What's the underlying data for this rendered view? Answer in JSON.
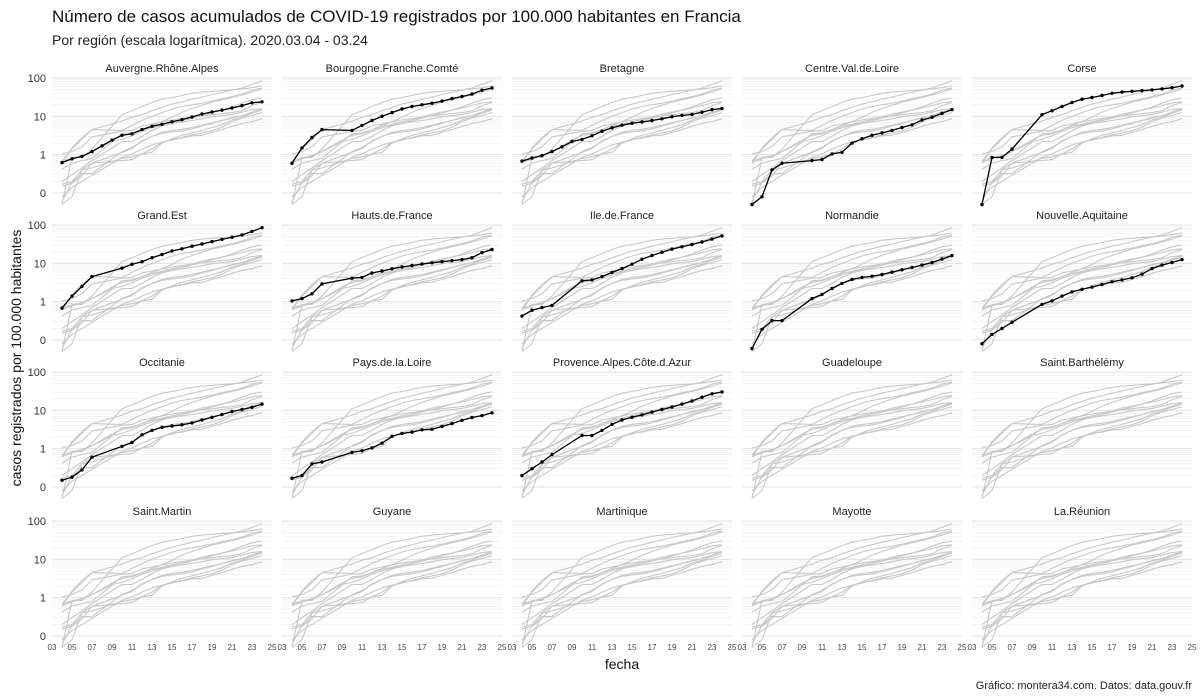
{
  "chart_data": {
    "type": "line",
    "title": "Número de casos acumulados de COVID-19 registrados por 100.000 habitantes en Francia",
    "subtitle": "Por región (escala logarítmica). 2020.03.04 - 03.24",
    "xlabel": "fecha",
    "ylabel": "casos registrados por 100.000 habitantes",
    "caption": "Gráfico: montera34.com. Datos: data.gouv.fr",
    "x_scale": "date",
    "y_scale": "log",
    "xlim": [
      "2020-03-03",
      "2020-03-25"
    ],
    "ylim": [
      0.1,
      100
    ],
    "y_ticks": [
      {
        "value": 0.1,
        "label": "0"
      },
      {
        "value": 1,
        "label": "1"
      },
      {
        "value": 10,
        "label": "10"
      },
      {
        "value": 100,
        "label": "100"
      }
    ],
    "x_ticks": [
      {
        "value": "2020-03-03",
        "label": "03"
      },
      {
        "value": "2020-03-05",
        "label": "05"
      },
      {
        "value": "2020-03-07",
        "label": "07"
      },
      {
        "value": "2020-03-09",
        "label": "09"
      },
      {
        "value": "2020-03-11",
        "label": "11"
      },
      {
        "value": "2020-03-13",
        "label": "13"
      },
      {
        "value": "2020-03-15",
        "label": "15"
      },
      {
        "value": "2020-03-17",
        "label": "17"
      },
      {
        "value": "2020-03-19",
        "label": "19"
      },
      {
        "value": "2020-03-21",
        "label": "21"
      },
      {
        "value": "2020-03-23",
        "label": "23"
      },
      {
        "value": "2020-03-25",
        "label": "25"
      }
    ],
    "grid": true,
    "legend": "none",
    "highlight_color": "#000000",
    "background_series_color": "#c8c8c8",
    "facets": [
      {
        "name": "Auvergne.Rhône.Alpes",
        "x": [
          "2020-03-04",
          "2020-03-05",
          "2020-03-06",
          "2020-03-07",
          "2020-03-08",
          "2020-03-09",
          "2020-03-10",
          "2020-03-11",
          "2020-03-12",
          "2020-03-13",
          "2020-03-14",
          "2020-03-15",
          "2020-03-16",
          "2020-03-17",
          "2020-03-18",
          "2020-03-19",
          "2020-03-20",
          "2020-03-21",
          "2020-03-22",
          "2020-03-23",
          "2020-03-24"
        ],
        "y": [
          0.62,
          0.78,
          0.9,
          1.2,
          1.7,
          2.4,
          3.2,
          3.5,
          4.5,
          5.5,
          6.2,
          7.2,
          8.2,
          9.6,
          11.5,
          13,
          14.5,
          16.5,
          19,
          22.5,
          24
        ]
      },
      {
        "name": "Bourgogne.Franche.Comté",
        "x": [
          "2020-03-04",
          "2020-03-05",
          "2020-03-06",
          "2020-03-07",
          "2020-03-10",
          "2020-03-11",
          "2020-03-12",
          "2020-03-13",
          "2020-03-14",
          "2020-03-15",
          "2020-03-16",
          "2020-03-17",
          "2020-03-18",
          "2020-03-19",
          "2020-03-20",
          "2020-03-21",
          "2020-03-22",
          "2020-03-23",
          "2020-03-24"
        ],
        "y": [
          0.6,
          1.5,
          2.8,
          4.5,
          4.3,
          5.8,
          7.8,
          10,
          12.5,
          15.5,
          18,
          20,
          22,
          25,
          29,
          33,
          38,
          48,
          55
        ]
      },
      {
        "name": "Bretagne",
        "x": [
          "2020-03-04",
          "2020-03-05",
          "2020-03-06",
          "2020-03-07",
          "2020-03-08",
          "2020-03-09",
          "2020-03-10",
          "2020-03-11",
          "2020-03-12",
          "2020-03-13",
          "2020-03-14",
          "2020-03-15",
          "2020-03-16",
          "2020-03-17",
          "2020-03-18",
          "2020-03-19",
          "2020-03-20",
          "2020-03-21",
          "2020-03-22",
          "2020-03-23",
          "2020-03-24"
        ],
        "y": [
          0.68,
          0.82,
          0.95,
          1.2,
          1.6,
          2.2,
          2.5,
          3.1,
          4.1,
          5,
          5.9,
          6.6,
          7.1,
          7.8,
          8.6,
          9.8,
          10.5,
          11.2,
          12.8,
          15,
          16
        ]
      },
      {
        "name": "Centre.Val.de.Loire",
        "x": [
          "2020-03-04",
          "2020-03-05",
          "2020-03-06",
          "2020-03-07",
          "2020-03-10",
          "2020-03-11",
          "2020-03-12",
          "2020-03-13",
          "2020-03-14",
          "2020-03-15",
          "2020-03-16",
          "2020-03-17",
          "2020-03-18",
          "2020-03-19",
          "2020-03-20",
          "2020-03-21",
          "2020-03-22",
          "2020-03-23",
          "2020-03-24"
        ],
        "y": [
          0.05,
          0.08,
          0.4,
          0.6,
          0.7,
          0.75,
          1.05,
          1.15,
          2,
          2.6,
          3.2,
          3.7,
          4.3,
          5.1,
          6,
          8,
          9.5,
          12,
          15
        ]
      },
      {
        "name": "Corse",
        "x": [
          "2020-03-04",
          "2020-03-05",
          "2020-03-06",
          "2020-03-07",
          "2020-03-10",
          "2020-03-11",
          "2020-03-12",
          "2020-03-13",
          "2020-03-14",
          "2020-03-15",
          "2020-03-16",
          "2020-03-17",
          "2020-03-18",
          "2020-03-19",
          "2020-03-20",
          "2020-03-21",
          "2020-03-22",
          "2020-03-23",
          "2020-03-24"
        ],
        "y": [
          0.05,
          0.85,
          0.85,
          1.4,
          11,
          14,
          18,
          23,
          28,
          31,
          35,
          40,
          43,
          45,
          47,
          49,
          52,
          56,
          62
        ]
      },
      {
        "name": "Grand.Est",
        "x": [
          "2020-03-04",
          "2020-03-05",
          "2020-03-06",
          "2020-03-07",
          "2020-03-10",
          "2020-03-11",
          "2020-03-12",
          "2020-03-13",
          "2020-03-14",
          "2020-03-15",
          "2020-03-16",
          "2020-03-17",
          "2020-03-18",
          "2020-03-19",
          "2020-03-20",
          "2020-03-21",
          "2020-03-22",
          "2020-03-23",
          "2020-03-24"
        ],
        "y": [
          0.68,
          1.4,
          2.5,
          4.5,
          7.5,
          9.5,
          11,
          14,
          17,
          21,
          24,
          28,
          32,
          37,
          42,
          48,
          55,
          68,
          85
        ]
      },
      {
        "name": "Hauts.de.France",
        "x": [
          "2020-03-04",
          "2020-03-05",
          "2020-03-06",
          "2020-03-07",
          "2020-03-10",
          "2020-03-11",
          "2020-03-12",
          "2020-03-13",
          "2020-03-14",
          "2020-03-15",
          "2020-03-16",
          "2020-03-17",
          "2020-03-18",
          "2020-03-19",
          "2020-03-20",
          "2020-03-21",
          "2020-03-22",
          "2020-03-23",
          "2020-03-24"
        ],
        "y": [
          1.05,
          1.2,
          1.6,
          2.9,
          4.1,
          4.3,
          5.6,
          6.3,
          7.2,
          8,
          8.8,
          9.6,
          10.3,
          11,
          11.8,
          12.5,
          14,
          19,
          23
        ]
      },
      {
        "name": "Ile.de.France",
        "x": [
          "2020-03-04",
          "2020-03-05",
          "2020-03-06",
          "2020-03-07",
          "2020-03-10",
          "2020-03-11",
          "2020-03-12",
          "2020-03-13",
          "2020-03-14",
          "2020-03-15",
          "2020-03-16",
          "2020-03-17",
          "2020-03-18",
          "2020-03-19",
          "2020-03-20",
          "2020-03-21",
          "2020-03-22",
          "2020-03-23",
          "2020-03-24"
        ],
        "y": [
          0.42,
          0.6,
          0.7,
          0.8,
          3.5,
          3.7,
          4.5,
          5.8,
          7.3,
          9.5,
          12.8,
          16,
          19.5,
          23.5,
          27,
          31,
          36,
          43,
          52
        ]
      },
      {
        "name": "Normandie",
        "x": [
          "2020-03-04",
          "2020-03-05",
          "2020-03-06",
          "2020-03-07",
          "2020-03-10",
          "2020-03-11",
          "2020-03-12",
          "2020-03-13",
          "2020-03-14",
          "2020-03-15",
          "2020-03-16",
          "2020-03-17",
          "2020-03-18",
          "2020-03-19",
          "2020-03-20",
          "2020-03-21",
          "2020-03-22",
          "2020-03-23",
          "2020-03-24"
        ],
        "y": [
          0.06,
          0.19,
          0.32,
          0.32,
          1.2,
          1.55,
          2.2,
          3,
          3.8,
          4.3,
          4.6,
          5.1,
          5.9,
          6.8,
          7.8,
          9,
          10.5,
          13,
          16
        ]
      },
      {
        "name": "Nouvelle.Aquitaine",
        "x": [
          "2020-03-04",
          "2020-03-05",
          "2020-03-06",
          "2020-03-07",
          "2020-03-10",
          "2020-03-11",
          "2020-03-12",
          "2020-03-13",
          "2020-03-14",
          "2020-03-15",
          "2020-03-16",
          "2020-03-17",
          "2020-03-18",
          "2020-03-19",
          "2020-03-20",
          "2020-03-21",
          "2020-03-22",
          "2020-03-23",
          "2020-03-24"
        ],
        "y": [
          0.08,
          0.14,
          0.2,
          0.29,
          0.85,
          1.05,
          1.4,
          1.8,
          2.1,
          2.4,
          2.8,
          3.3,
          3.7,
          4.2,
          5.2,
          7.3,
          9,
          10.5,
          12.5
        ]
      },
      {
        "name": "Occitanie",
        "x": [
          "2020-03-04",
          "2020-03-05",
          "2020-03-06",
          "2020-03-07",
          "2020-03-10",
          "2020-03-11",
          "2020-03-12",
          "2020-03-13",
          "2020-03-14",
          "2020-03-15",
          "2020-03-16",
          "2020-03-17",
          "2020-03-18",
          "2020-03-19",
          "2020-03-20",
          "2020-03-21",
          "2020-03-22",
          "2020-03-23",
          "2020-03-24"
        ],
        "y": [
          0.15,
          0.18,
          0.28,
          0.6,
          1.15,
          1.45,
          2.3,
          3,
          3.6,
          3.9,
          4.2,
          4.7,
          5.6,
          6.6,
          7.8,
          9.3,
          10.5,
          12,
          14.5
        ]
      },
      {
        "name": "Pays.de.la.Loire",
        "x": [
          "2020-03-04",
          "2020-03-05",
          "2020-03-06",
          "2020-03-07",
          "2020-03-10",
          "2020-03-11",
          "2020-03-12",
          "2020-03-13",
          "2020-03-14",
          "2020-03-15",
          "2020-03-16",
          "2020-03-17",
          "2020-03-18",
          "2020-03-19",
          "2020-03-20",
          "2020-03-21",
          "2020-03-22",
          "2020-03-23",
          "2020-03-24"
        ],
        "y": [
          0.17,
          0.2,
          0.4,
          0.45,
          0.8,
          0.88,
          1.05,
          1.4,
          2.1,
          2.5,
          2.7,
          3.1,
          3.2,
          3.8,
          4.5,
          5.5,
          6.5,
          7.3,
          8.6
        ]
      },
      {
        "name": "Provence.Alpes.Côte.d.Azur",
        "x": [
          "2020-03-04",
          "2020-03-05",
          "2020-03-06",
          "2020-03-07",
          "2020-03-10",
          "2020-03-11",
          "2020-03-12",
          "2020-03-13",
          "2020-03-14",
          "2020-03-15",
          "2020-03-16",
          "2020-03-17",
          "2020-03-18",
          "2020-03-19",
          "2020-03-20",
          "2020-03-21",
          "2020-03-22",
          "2020-03-23",
          "2020-03-24"
        ],
        "y": [
          0.2,
          0.3,
          0.45,
          0.7,
          2.2,
          2.2,
          3,
          4.3,
          5.6,
          6.6,
          7.6,
          9,
          10.5,
          12.2,
          14.5,
          17.5,
          22,
          27,
          30
        ]
      },
      {
        "name": "Guadeloupe",
        "x": [],
        "y": []
      },
      {
        "name": "Saint.Barthélémy",
        "x": [],
        "y": []
      },
      {
        "name": "Saint.Martin",
        "x": [],
        "y": []
      },
      {
        "name": "Guyane",
        "x": [],
        "y": []
      },
      {
        "name": "Martinique",
        "x": [],
        "y": []
      },
      {
        "name": "Mayotte",
        "x": [],
        "y": []
      },
      {
        "name": "La.Réunion",
        "x": [],
        "y": []
      }
    ]
  }
}
